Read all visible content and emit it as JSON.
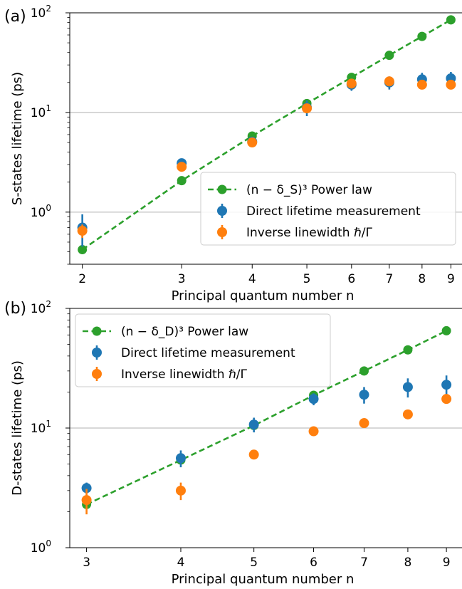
{
  "chart_data": [
    {
      "type": "scatter",
      "panel_label": "(a)",
      "xlabel": "Principal quantum number n",
      "ylabel": "S-states lifetime (ps)",
      "xscale": "log",
      "yscale": "log",
      "xlim": [
        1.9,
        9.5
      ],
      "ylim": [
        0.3,
        100
      ],
      "xticks": [
        2,
        3,
        4,
        5,
        6,
        7,
        8,
        9
      ],
      "yticks": [
        {
          "value": 1,
          "label": "10",
          "exp": "0"
        },
        {
          "value": 10,
          "label": "10",
          "exp": "1"
        },
        {
          "value": 100,
          "label": "10",
          "exp": "2"
        }
      ],
      "grid": "horizontal",
      "legend_position": "lower-right",
      "legend": [
        {
          "text": "(n − δ_S)³ Power law",
          "sub": "S"
        },
        {
          "text": "Direct lifetime measurement"
        },
        {
          "text": "Inverse linewidth ℏ/Γ"
        }
      ],
      "series": [
        {
          "name": "(n − δ_S)³ Power law",
          "style": "dashed-line-markers",
          "color": "#2ca02c",
          "x": [
            2,
            3,
            4,
            5,
            6,
            7,
            8,
            9
          ],
          "y": [
            0.42,
            2.07,
            5.8,
            12.3,
            22.5,
            37.5,
            58,
            85
          ]
        },
        {
          "name": "Direct lifetime measurement",
          "style": "errorbar",
          "color": "#1f77b4",
          "x": [
            2,
            3,
            4,
            5,
            6,
            7,
            8,
            9
          ],
          "y": [
            0.7,
            3.1,
            5.1,
            11.2,
            19,
            20,
            21.5,
            22
          ],
          "yerr_low": [
            0.25,
            0.3,
            0.4,
            2.0,
            2.5,
            3.0,
            3.5,
            3.5
          ],
          "yerr_high": [
            0.25,
            0.3,
            0.4,
            2.0,
            2.5,
            3.0,
            3.5,
            3.5
          ]
        },
        {
          "name": "Inverse linewidth ℏ/Γ",
          "style": "errorbar",
          "color": "#ff7f0e",
          "x": [
            2,
            3,
            4,
            5,
            6,
            7,
            8,
            9
          ],
          "y": [
            0.65,
            2.85,
            5.0,
            11.0,
            19.5,
            20.5,
            19,
            19
          ],
          "yerr_low": [
            0.1,
            0.2,
            0.3,
            0.6,
            1.0,
            1.0,
            1.0,
            1.0
          ],
          "yerr_high": [
            0.1,
            0.2,
            0.3,
            0.6,
            1.0,
            1.0,
            1.0,
            1.0
          ]
        }
      ]
    },
    {
      "type": "scatter",
      "panel_label": "(b)",
      "xlabel": "Principal quantum number n",
      "ylabel": "D-states lifetime (ps)",
      "xscale": "log",
      "yscale": "log",
      "xlim": [
        2.85,
        9.5
      ],
      "ylim": [
        1,
        100
      ],
      "xticks": [
        3,
        4,
        5,
        6,
        7,
        8,
        9
      ],
      "yticks": [
        {
          "value": 1,
          "label": "10",
          "exp": "0"
        },
        {
          "value": 10,
          "label": "10",
          "exp": "1"
        },
        {
          "value": 100,
          "label": "10",
          "exp": "2"
        }
      ],
      "grid": "horizontal",
      "legend_position": "upper-left",
      "legend": [
        {
          "text": "(n − δ_D)³ Power law",
          "sub": "D"
        },
        {
          "text": "Direct lifetime measurement"
        },
        {
          "text": "Inverse linewidth ℏ/Γ"
        }
      ],
      "series": [
        {
          "name": "(n − δ_D)³ Power law",
          "style": "dashed-line-markers",
          "color": "#2ca02c",
          "x": [
            3,
            4,
            5,
            6,
            7,
            8,
            9
          ],
          "y": [
            2.3,
            5.4,
            10.5,
            18.8,
            30,
            45,
            65
          ]
        },
        {
          "name": "Direct lifetime measurement",
          "style": "errorbar",
          "color": "#1f77b4",
          "x": [
            3,
            4,
            5,
            6,
            7,
            8,
            9
          ],
          "y": [
            3.15,
            5.6,
            10.7,
            17.5,
            19,
            22,
            23
          ],
          "yerr_low": [
            0.35,
            0.9,
            1.5,
            2.0,
            3.0,
            4.0,
            4.5
          ],
          "yerr_high": [
            0.35,
            0.9,
            1.5,
            2.0,
            3.0,
            4.0,
            4.5
          ]
        },
        {
          "name": "Inverse linewidth ℏ/Γ",
          "style": "errorbar",
          "color": "#ff7f0e",
          "x": [
            3,
            4,
            5,
            6,
            7,
            8,
            9
          ],
          "y": [
            2.5,
            3.0,
            6.0,
            9.4,
            11,
            13,
            17.5
          ],
          "yerr_low": [
            0.6,
            0.5,
            0.3,
            0.5,
            0.6,
            0.7,
            1.0
          ],
          "yerr_high": [
            0.6,
            0.5,
            0.3,
            0.5,
            0.6,
            0.7,
            1.0
          ]
        }
      ]
    }
  ]
}
